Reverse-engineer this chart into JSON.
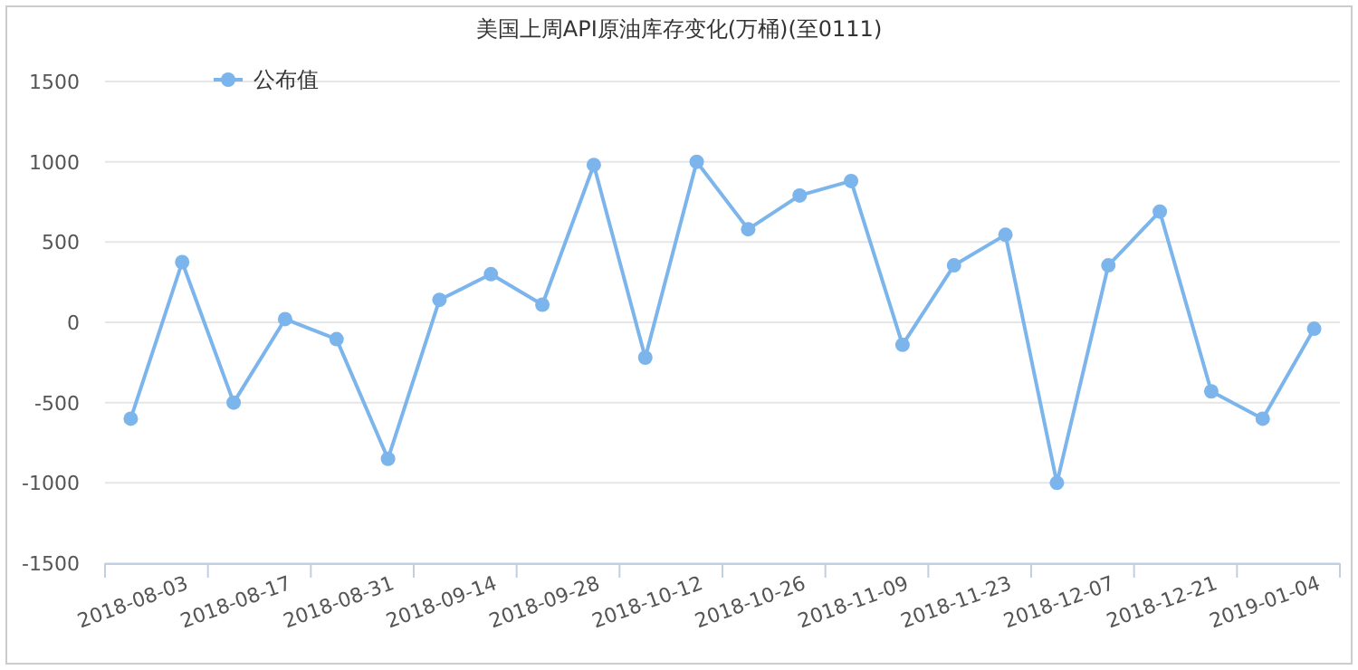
{
  "chart_data": {
    "type": "line",
    "title": "美国上周API原油库存变化(万桶)(至0111)",
    "categories": [
      null,
      "2018-08-03",
      null,
      "2018-08-17",
      null,
      "2018-08-31",
      null,
      "2018-09-14",
      null,
      "2018-09-28",
      null,
      "2018-10-12",
      null,
      "2018-10-26",
      null,
      "2018-11-09",
      null,
      "2018-11-23",
      null,
      "2018-12-07",
      null,
      "2018-12-21",
      null,
      "2019-01-04"
    ],
    "series": [
      {
        "name": "公布值",
        "color": "#7cb5ec",
        "values": [
          -600,
          375,
          -500,
          20,
          -105,
          -850,
          140,
          300,
          110,
          980,
          -220,
          1000,
          580,
          790,
          880,
          -140,
          355,
          545,
          -1000,
          355,
          690,
          -430,
          -600,
          -40
        ]
      }
    ],
    "ylim": [
      -1500,
      1500
    ],
    "yticks": [
      -1500,
      -1000,
      -500,
      0,
      500,
      1000,
      1500
    ],
    "grid": "y",
    "legend": "top left",
    "marker": "circle",
    "line_style": "solid"
  }
}
